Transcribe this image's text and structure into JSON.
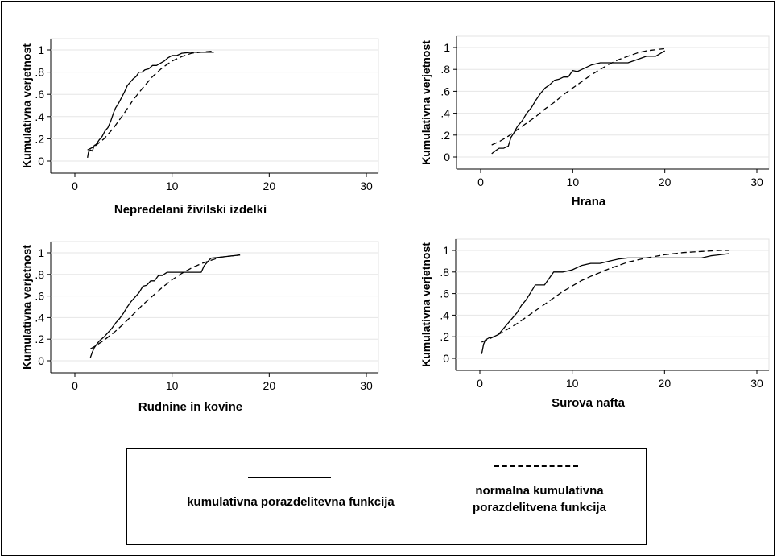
{
  "chart_data": [
    {
      "type": "line",
      "title": "",
      "xlabel": "Nepredelani živilski izdelki",
      "ylabel": "Kumulativna verjetnost",
      "xlim": [
        0,
        30
      ],
      "ylim": [
        0,
        1
      ],
      "xticks": [
        "0",
        "10",
        "20",
        "30"
      ],
      "yticks": [
        "0",
        ".2",
        ".4",
        ".6",
        ".8",
        "1"
      ],
      "grid": "horizontal",
      "series": [
        {
          "style": "solid",
          "x": [
            1.3,
            1.4,
            1.6,
            1.8,
            2.0,
            2.2,
            2.5,
            2.8,
            3.1,
            3.4,
            3.7,
            4.0,
            4.2,
            4.5,
            4.8,
            5.1,
            5.4,
            5.7,
            6.0,
            6.3,
            6.6,
            6.9,
            7.2,
            7.6,
            8.0,
            8.4,
            8.8,
            9.2,
            9.6,
            10.0,
            10.5,
            11.0,
            12.0,
            13.0,
            14.3
          ],
          "y": [
            0.03,
            0.08,
            0.1,
            0.09,
            0.14,
            0.15,
            0.19,
            0.22,
            0.27,
            0.3,
            0.36,
            0.44,
            0.48,
            0.52,
            0.57,
            0.62,
            0.68,
            0.71,
            0.74,
            0.76,
            0.8,
            0.8,
            0.82,
            0.83,
            0.86,
            0.86,
            0.88,
            0.9,
            0.93,
            0.95,
            0.95,
            0.97,
            0.98,
            0.98,
            0.98
          ]
        },
        {
          "style": "dashed",
          "x": [
            1.3,
            2.0,
            3.0,
            4.0,
            5.0,
            6.0,
            7.0,
            8.0,
            9.0,
            10.0,
            11.0,
            12.0,
            13.0,
            14.3
          ],
          "y": [
            0.1,
            0.13,
            0.2,
            0.3,
            0.42,
            0.55,
            0.66,
            0.76,
            0.84,
            0.9,
            0.94,
            0.97,
            0.98,
            0.99
          ]
        }
      ]
    },
    {
      "type": "line",
      "title": "",
      "xlabel": "Hrana",
      "ylabel": "Kumulativna verjetnost",
      "xlim": [
        0,
        30
      ],
      "ylim": [
        0,
        1
      ],
      "xticks": [
        "0",
        "10",
        "20",
        "30"
      ],
      "yticks": [
        "0",
        ".2",
        ".4",
        ".6",
        ".8",
        "1"
      ],
      "grid": "horizontal",
      "series": [
        {
          "style": "solid",
          "x": [
            1.2,
            1.5,
            2.0,
            2.5,
            3.0,
            3.3,
            3.6,
            4.0,
            4.5,
            5.0,
            5.5,
            6.0,
            6.5,
            7.0,
            7.5,
            8.0,
            8.5,
            9.0,
            9.5,
            10.0,
            10.5,
            11.0,
            12.0,
            13.0,
            14.0,
            15.0,
            16.0,
            17.0,
            18.0,
            19.0,
            20.0
          ],
          "y": [
            0.03,
            0.05,
            0.08,
            0.08,
            0.1,
            0.18,
            0.22,
            0.28,
            0.33,
            0.4,
            0.45,
            0.52,
            0.58,
            0.63,
            0.66,
            0.7,
            0.71,
            0.73,
            0.73,
            0.79,
            0.78,
            0.8,
            0.84,
            0.86,
            0.86,
            0.86,
            0.86,
            0.89,
            0.92,
            0.92,
            0.97
          ]
        },
        {
          "style": "dashed",
          "x": [
            1.2,
            2.0,
            3.0,
            4.0,
            5.0,
            6.0,
            7.0,
            8.0,
            9.0,
            10.0,
            11.0,
            12.0,
            13.0,
            14.0,
            15.0,
            16.0,
            17.0,
            18.0,
            19.0,
            20.0
          ],
          "y": [
            0.11,
            0.14,
            0.19,
            0.25,
            0.31,
            0.37,
            0.44,
            0.5,
            0.57,
            0.63,
            0.69,
            0.75,
            0.8,
            0.85,
            0.89,
            0.92,
            0.95,
            0.97,
            0.98,
            0.99
          ]
        }
      ]
    },
    {
      "type": "line",
      "title": "",
      "xlabel": "Rudnine in kovine",
      "ylabel": "Kumulativna verjetnost",
      "xlim": [
        0,
        30
      ],
      "ylim": [
        0,
        1
      ],
      "xticks": [
        "0",
        "10",
        "20",
        "30"
      ],
      "yticks": [
        "0",
        ".2",
        ".4",
        ".6",
        ".8",
        "1"
      ],
      "grid": "horizontal",
      "series": [
        {
          "style": "solid",
          "x": [
            1.6,
            1.8,
            2.0,
            2.3,
            2.6,
            3.0,
            3.4,
            3.8,
            4.2,
            4.6,
            5.0,
            5.4,
            5.8,
            6.2,
            6.6,
            7.0,
            7.4,
            7.8,
            8.2,
            8.6,
            9.0,
            9.5,
            10.0,
            11.0,
            12.0,
            13.0,
            13.3,
            14.0,
            15.0,
            16.0,
            17.0
          ],
          "y": [
            0.03,
            0.08,
            0.12,
            0.16,
            0.19,
            0.22,
            0.26,
            0.3,
            0.35,
            0.39,
            0.44,
            0.5,
            0.55,
            0.59,
            0.63,
            0.69,
            0.7,
            0.74,
            0.74,
            0.79,
            0.79,
            0.82,
            0.82,
            0.82,
            0.82,
            0.82,
            0.88,
            0.95,
            0.96,
            0.97,
            0.98
          ]
        },
        {
          "style": "dashed",
          "x": [
            1.6,
            2.0,
            3.0,
            4.0,
            5.0,
            6.0,
            7.0,
            8.0,
            9.0,
            10.0,
            11.0,
            12.0,
            13.0,
            14.0,
            15.0,
            16.0,
            17.0
          ],
          "y": [
            0.11,
            0.13,
            0.19,
            0.26,
            0.34,
            0.43,
            0.52,
            0.6,
            0.68,
            0.75,
            0.81,
            0.86,
            0.9,
            0.93,
            0.96,
            0.97,
            0.98
          ]
        }
      ]
    },
    {
      "type": "line",
      "title": "",
      "xlabel": "Surova nafta",
      "ylabel": "Kumulativna verjetnost",
      "xlim": [
        0,
        30
      ],
      "ylim": [
        0,
        1
      ],
      "xticks": [
        "0",
        "10",
        "20",
        "30"
      ],
      "yticks": [
        "0",
        ".2",
        ".4",
        ".6",
        ".8",
        "1"
      ],
      "grid": "horizontal",
      "series": [
        {
          "style": "solid",
          "x": [
            0.2,
            0.4,
            0.6,
            1.0,
            1.5,
            2.0,
            2.5,
            3.0,
            3.5,
            4.0,
            4.5,
            5.0,
            5.5,
            6.0,
            6.5,
            7.0,
            7.5,
            8.0,
            9.0,
            10.0,
            11.0,
            12.0,
            13.0,
            14.0,
            15.0,
            16.0,
            18.0,
            20.0,
            22.0,
            24.0,
            25.0,
            26.0,
            27.0
          ],
          "y": [
            0.04,
            0.13,
            0.17,
            0.19,
            0.2,
            0.22,
            0.27,
            0.32,
            0.37,
            0.42,
            0.49,
            0.54,
            0.61,
            0.68,
            0.68,
            0.68,
            0.74,
            0.8,
            0.8,
            0.82,
            0.86,
            0.88,
            0.88,
            0.9,
            0.92,
            0.93,
            0.93,
            0.93,
            0.93,
            0.93,
            0.95,
            0.96,
            0.97
          ]
        },
        {
          "style": "dashed",
          "x": [
            0.2,
            1.0,
            2.0,
            3.0,
            4.0,
            5.0,
            6.0,
            7.0,
            8.0,
            9.0,
            10.0,
            11.0,
            12.0,
            14.0,
            16.0,
            18.0,
            20.0,
            22.0,
            24.0,
            26.0,
            27.0
          ],
          "y": [
            0.15,
            0.18,
            0.22,
            0.27,
            0.32,
            0.38,
            0.44,
            0.5,
            0.56,
            0.62,
            0.67,
            0.72,
            0.76,
            0.83,
            0.89,
            0.93,
            0.96,
            0.98,
            0.99,
            1.0,
            1.0
          ]
        }
      ]
    }
  ],
  "legend": {
    "solid_label": "kumulativna porazdelitevna funkcija",
    "dashed_label_line1": "normalna kumulativna",
    "dashed_label_line2": "porazdelitvena funkcija"
  }
}
